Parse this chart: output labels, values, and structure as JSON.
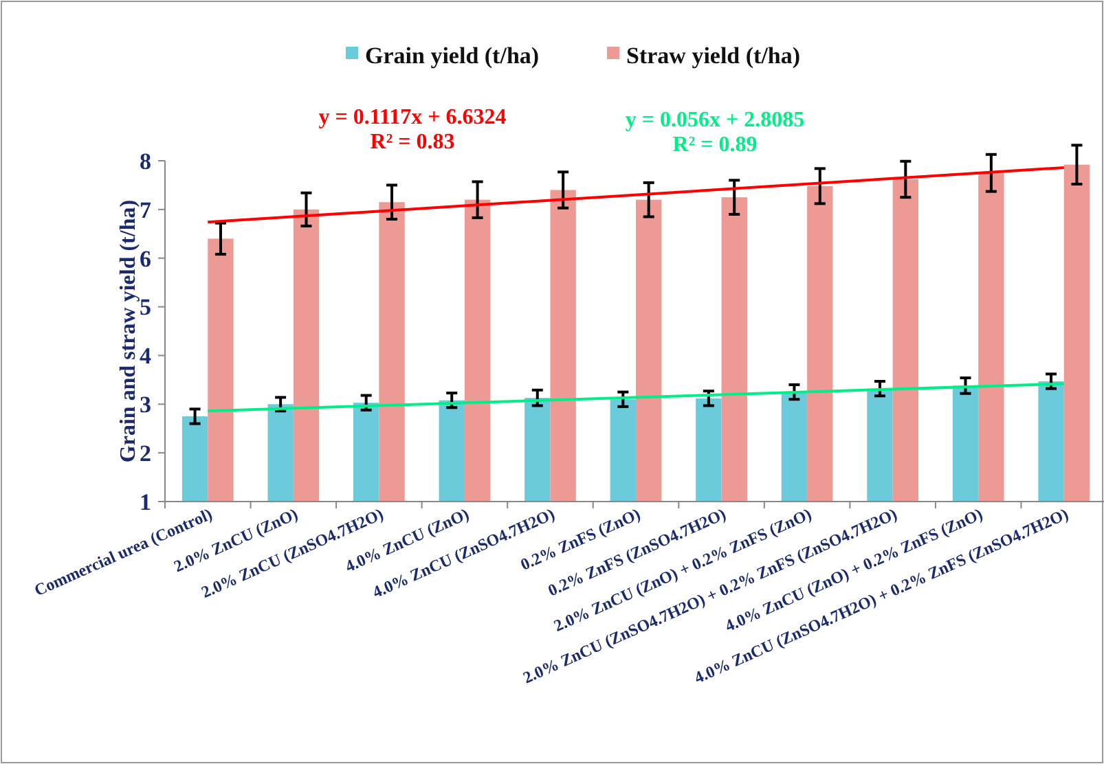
{
  "chart_data": {
    "type": "bar",
    "ylabel": "Grain and straw yield (t/ha)",
    "categories": [
      "Commercial urea (Control)",
      "2.0% ZnCU (ZnO)",
      "2.0% ZnCU (ZnSO4.7H2O)",
      "4.0% ZnCU (ZnO)",
      "4.0% ZnCU (ZnSO4.7H2O)",
      "0.2% ZnFS (ZnO)",
      "0.2% ZnFS (ZnSO4.7H2O)",
      "2.0% ZnCU (ZnO) + 0.2% ZnFS (ZnO)",
      "2.0% ZnCU (ZnSO4.7H2O) + 0.2% ZnFS (ZnSO4.7H2O)",
      "4.0% ZnCU (ZnO) + 0.2% ZnFS (ZnO)",
      "4.0% ZnCU (ZnSO4.7H2O) + 0.2% ZnFS (ZnSO4.7H2O)"
    ],
    "series": [
      {
        "name": "Grain yield (t/ha)",
        "color": "#6ccbdb",
        "values": [
          2.75,
          3.0,
          3.03,
          3.08,
          3.13,
          3.1,
          3.12,
          3.25,
          3.32,
          3.38,
          3.47
        ],
        "errors": [
          0.15,
          0.14,
          0.15,
          0.15,
          0.16,
          0.15,
          0.15,
          0.15,
          0.15,
          0.16,
          0.15
        ]
      },
      {
        "name": "Straw yield (t/ha)",
        "color": "#ec9a93",
        "values": [
          6.4,
          7.0,
          7.15,
          7.2,
          7.4,
          7.2,
          7.25,
          7.48,
          7.62,
          7.75,
          7.92
        ],
        "errors": [
          0.32,
          0.34,
          0.35,
          0.37,
          0.37,
          0.35,
          0.35,
          0.36,
          0.37,
          0.38,
          0.4
        ]
      },
      {
        "type": "line",
        "color": "#ff0000",
        "x": [
          "Commercial urea (Control)",
          "4.0% ZnCU (ZnSO4.7H2O) + 0.2% ZnFS (ZnSO4.7H2O)"
        ],
        "values": [
          6.74,
          7.86
        ]
      },
      {
        "type": "line",
        "color": "#00ee88",
        "x": [
          "Commercial urea (Control)",
          "4.0% ZnCU (ZnSO4.7H2O) + 0.2% ZnFS (ZnSO4.7H2O)"
        ],
        "values": [
          2.86,
          3.42
        ]
      }
    ],
    "annotations": [
      "y = 0.1117x + 6.6324",
      "R² = 0.83",
      "y = 0.056x + 2.8085",
      "R² = 0.89"
    ],
    "ylim": [
      1,
      8
    ],
    "yticks": [
      1,
      2,
      3,
      4,
      5,
      6,
      7,
      8
    ],
    "grid": false,
    "legend": "top"
  }
}
